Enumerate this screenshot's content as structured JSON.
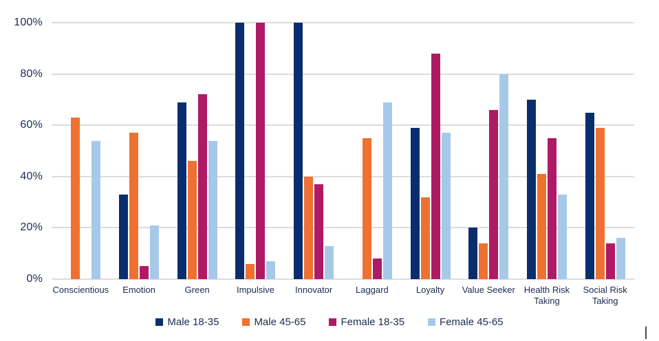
{
  "chart_data": {
    "type": "bar",
    "title": "",
    "xlabel": "",
    "ylabel": "",
    "categories": [
      "Conscientious",
      "Emotion",
      "Green",
      "Impulsive",
      "Innovator",
      "Laggard",
      "Loyalty",
      "Value Seeker",
      "Health Risk Taking",
      "Social Risk Taking"
    ],
    "series": [
      {
        "name": "Male 18-35",
        "color": "#0a2e6d",
        "values": [
          0,
          33,
          69,
          100,
          100,
          0,
          59,
          20,
          70,
          65
        ]
      },
      {
        "name": "Male 45-65",
        "color": "#ee7131",
        "values": [
          63,
          57,
          46,
          6,
          40,
          55,
          32,
          14,
          41,
          59
        ]
      },
      {
        "name": "Female 18-35",
        "color": "#ae1a66",
        "values": [
          0,
          5,
          72,
          100,
          37,
          8,
          88,
          66,
          55,
          14
        ]
      },
      {
        "name": "Female 45-65",
        "color": "#a7c9e9",
        "values": [
          54,
          21,
          54,
          7,
          13,
          69,
          57,
          80,
          33,
          16
        ]
      }
    ],
    "ylim": [
      0,
      100
    ],
    "ytick_values": [
      0,
      20,
      40,
      60,
      80,
      100
    ],
    "ytick_labels": [
      "0%",
      "20%",
      "40%",
      "60%",
      "80%",
      "100%"
    ],
    "grid": true,
    "legend_position": "bottom"
  },
  "colors": {
    "background": "#ffffff",
    "gridline": "#dcdcdc",
    "axis_text": "#1b2a50"
  },
  "cursor": {
    "caret_visible": true
  }
}
